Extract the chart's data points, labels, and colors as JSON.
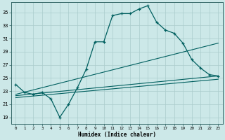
{
  "title": "",
  "xlabel": "Humidex (Indice chaleur)",
  "bg_color": "#cce8e8",
  "line_color": "#005f5f",
  "grid_color": "#aacccc",
  "xlim": [
    -0.5,
    23.5
  ],
  "ylim": [
    18.0,
    36.5
  ],
  "yticks": [
    19,
    21,
    23,
    25,
    27,
    29,
    31,
    33,
    35
  ],
  "xticks": [
    0,
    1,
    2,
    3,
    4,
    5,
    6,
    7,
    8,
    9,
    10,
    11,
    12,
    13,
    14,
    15,
    16,
    17,
    18,
    19,
    20,
    21,
    22,
    23
  ],
  "curve1_x": [
    0,
    1,
    2,
    3,
    4,
    5,
    6,
    7,
    8,
    9,
    10,
    11,
    12,
    13,
    14,
    15,
    16,
    17,
    18,
    19,
    20,
    21,
    22,
    23
  ],
  "curve1_y": [
    24.0,
    22.8,
    22.5,
    22.8,
    21.8,
    19.0,
    21.0,
    23.5,
    26.3,
    30.5,
    30.5,
    34.5,
    34.8,
    34.8,
    35.5,
    36.0,
    33.5,
    32.3,
    31.8,
    30.3,
    27.8,
    26.5,
    25.5,
    25.3
  ],
  "line2_x": [
    0,
    23
  ],
  "line2_y": [
    22.5,
    30.3
  ],
  "line3_x": [
    0,
    23
  ],
  "line3_y": [
    22.3,
    25.3
  ],
  "line4_x": [
    0,
    23
  ],
  "line4_y": [
    22.0,
    24.8
  ]
}
